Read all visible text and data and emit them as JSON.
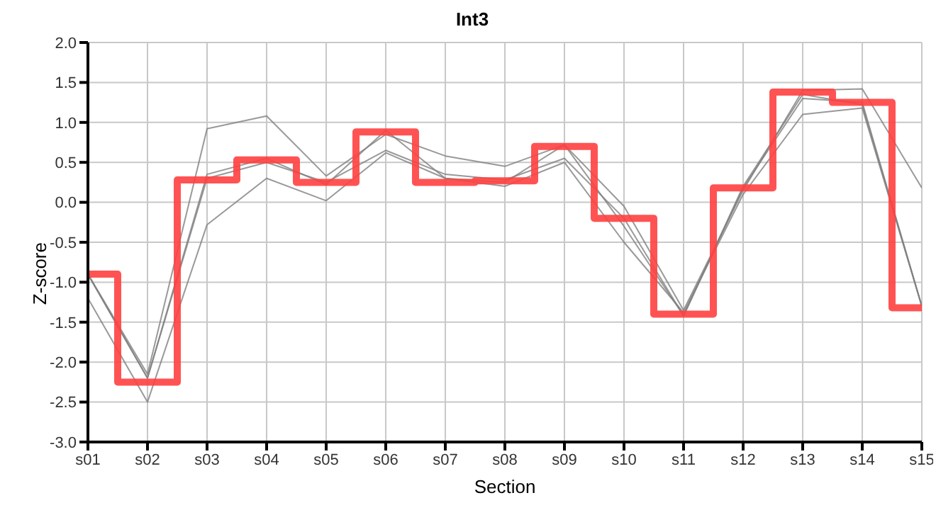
{
  "chart_data": {
    "type": "line",
    "title": "Int3",
    "xlabel": "Section",
    "ylabel": "Z-score",
    "categories": [
      "s01",
      "s02",
      "s03",
      "s04",
      "s05",
      "s06",
      "s07",
      "s08",
      "s09",
      "s10",
      "s11",
      "s12",
      "s13",
      "s14",
      "s15"
    ],
    "series": [
      {
        "color": "#808080",
        "values": [
          -0.9,
          -2.15,
          0.92,
          1.08,
          0.33,
          0.85,
          0.58,
          0.45,
          0.72,
          -0.05,
          -1.35,
          0.15,
          1.4,
          1.42,
          0.18
        ]
      },
      {
        "color": "#808080",
        "values": [
          -1.2,
          -2.5,
          -0.28,
          0.3,
          0.02,
          0.62,
          0.3,
          0.2,
          0.5,
          -0.5,
          -1.38,
          0.1,
          1.1,
          1.18,
          -1.3
        ]
      },
      {
        "color": "#808080",
        "values": [
          -0.9,
          -2.2,
          0.35,
          0.55,
          0.22,
          0.9,
          0.3,
          0.25,
          0.72,
          -0.3,
          -1.42,
          0.2,
          1.35,
          1.22,
          -1.3
        ]
      },
      {
        "color": "#808080",
        "values": [
          -0.9,
          -2.2,
          0.3,
          0.5,
          0.25,
          0.65,
          0.35,
          0.28,
          0.55,
          -0.2,
          -1.42,
          0.18,
          1.3,
          1.25,
          -1.3
        ]
      },
      {
        "type": "step",
        "color": "#ff4040",
        "values": [
          -0.9,
          -2.25,
          0.28,
          0.53,
          0.25,
          0.88,
          0.25,
          0.27,
          0.7,
          -0.2,
          -1.4,
          0.18,
          1.38,
          1.25,
          -1.32
        ]
      }
    ],
    "ylim": [
      -3,
      2
    ],
    "yticks": [
      {
        "value": -3,
        "label": "-3.0"
      },
      {
        "value": -2.5,
        "label": "-2.5"
      },
      {
        "value": -2,
        "label": "-2.0"
      },
      {
        "value": -1.5,
        "label": "-1.5"
      },
      {
        "value": -1,
        "label": "-1.0"
      },
      {
        "value": -0.5,
        "label": "-0.5"
      },
      {
        "value": 0,
        "label": "0.0"
      },
      {
        "value": 0.5,
        "label": "0.5"
      },
      {
        "value": 1,
        "label": "1.0"
      },
      {
        "value": 1.5,
        "label": "1.5"
      },
      {
        "value": 2,
        "label": "2.0"
      }
    ],
    "grid": true,
    "legend": false,
    "marker": "none",
    "line_style": "solid"
  }
}
